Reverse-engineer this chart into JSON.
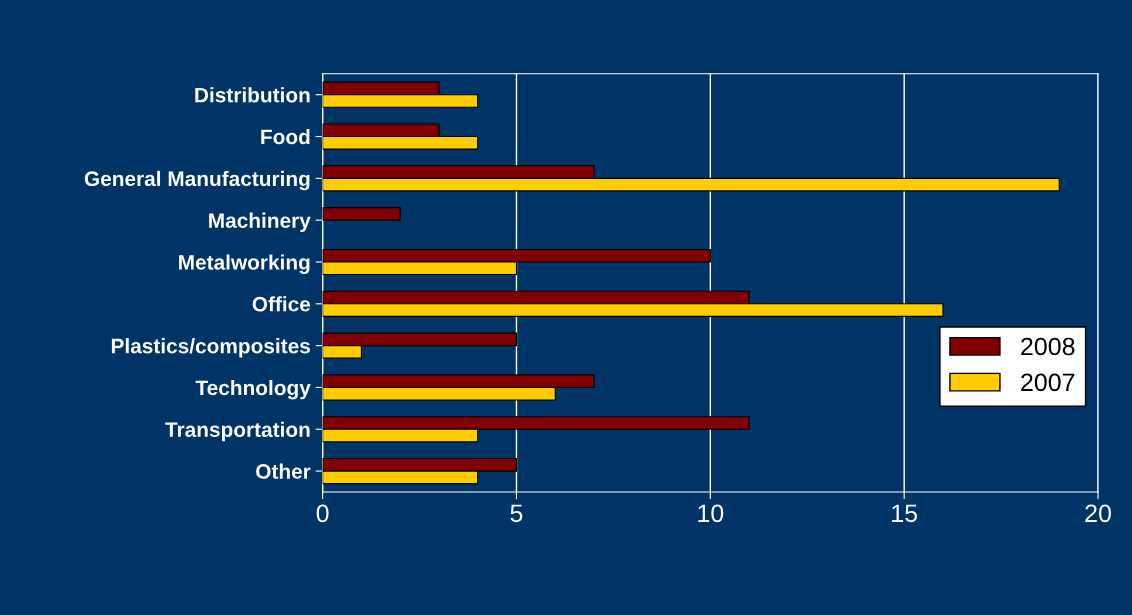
{
  "chart_data": {
    "type": "bar",
    "orientation": "horizontal",
    "categories": [
      "Distribution",
      "Food",
      "General Manufacturing",
      "Machinery",
      "Metalworking",
      "Office",
      "Plastics/composites",
      "Technology",
      "Transportation",
      "Other"
    ],
    "series": [
      {
        "name": "2008",
        "color": "#800000",
        "values": [
          3,
          3,
          7,
          2,
          10,
          11,
          5,
          7,
          11,
          5
        ]
      },
      {
        "name": "2007",
        "color": "#ffcc00",
        "values": [
          4,
          4,
          19,
          null,
          5,
          16,
          1,
          6,
          4,
          4
        ]
      }
    ],
    "xlim": [
      0,
      20
    ],
    "xticks": [
      0,
      5,
      10,
      15,
      20
    ],
    "grid": "x",
    "legend": "right"
  }
}
